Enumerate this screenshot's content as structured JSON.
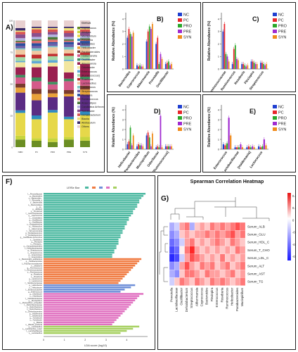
{
  "figure": {
    "label_A": "A)",
    "label_F": "F)",
    "label_G": "G)"
  },
  "panel_a": {
    "legend_title": "Genus",
    "legend": [
      {
        "name": "Coprococcus",
        "color": "#6b8e23"
      },
      {
        "name": "Alistipes",
        "color": "#c7d53e"
      },
      {
        "name": "Mucispirillum",
        "color": "#e6d84a"
      },
      {
        "name": "Prevotella",
        "color": "#2e8bc0"
      },
      {
        "name": "Bacteroides",
        "color": "#5b2c83"
      },
      {
        "name": "Helicobacter",
        "color": "#e8a23a"
      },
      {
        "name": "Parabacteroides",
        "color": "#7a3b2e"
      },
      {
        "name": "Holdemanella",
        "color": "#d45a8a"
      },
      {
        "name": "Oscillibacter",
        "color": "#3f8f5f"
      },
      {
        "name": "Akkermansia",
        "color": "#9a2050"
      },
      {
        "name": "Odoribacter",
        "color": "#f2e6a0"
      },
      {
        "name": "Enterococcus",
        "color": "#5fa9d6"
      },
      {
        "name": "[Ruminococcus]",
        "color": "#a3d9a5"
      },
      {
        "name": "Roseburia",
        "color": "#c03030"
      },
      {
        "name": "Lactobacillus",
        "color": "#f0c8a0"
      },
      {
        "name": "Lactococcus",
        "color": "#7ec8c8"
      },
      {
        "name": "Streptococcus",
        "color": "#6c5fa8"
      },
      {
        "name": "Flexispira",
        "color": "#2a4f9e"
      },
      {
        "name": "Ruminococcus",
        "color": "#e07070"
      },
      {
        "name": "Anaerostipes",
        "color": "#4a7a3a"
      },
      {
        "name": "Candidatus Arthromitus",
        "color": "#b3b3e0"
      },
      {
        "name": "Turicibacter",
        "color": "#8c4f8c"
      },
      {
        "name": "Dehalobacterium",
        "color": "#d9534f"
      },
      {
        "name": "Blautia",
        "color": "#efe27a"
      },
      {
        "name": "Allobaculum",
        "color": "#3a2a6a"
      },
      {
        "name": "Others",
        "color": "#e8d0d0"
      }
    ],
    "xticks": [
      "NMD",
      "PC",
      "PRO",
      "PRE",
      "SYN"
    ],
    "yticks": [
      "0",
      "25",
      "50",
      "75",
      "100"
    ]
  },
  "chart_data": [
    {
      "panel": "B)",
      "type": "bar",
      "ylabel": "Relative Abundance (%)",
      "categories": [
        "Bacteroides",
        "Coprococcus",
        "Akkermansia",
        "Prevotella",
        "Oscillibacter"
      ],
      "series": [
        {
          "name": "NC",
          "values": [
            2.5,
            0.3,
            2.2,
            2.0,
            0.4
          ]
        },
        {
          "name": "PC",
          "values": [
            3.2,
            0.2,
            3.0,
            2.5,
            0.5
          ]
        },
        {
          "name": "PRO",
          "values": [
            2.8,
            0.3,
            3.4,
            0.4,
            0.6
          ]
        },
        {
          "name": "PRE",
          "values": [
            2.6,
            0.2,
            3.2,
            1.2,
            0.3
          ]
        },
        {
          "name": "SYN",
          "values": [
            2.9,
            0.2,
            3.6,
            0.8,
            0.4
          ]
        }
      ]
    },
    {
      "panel": "C)",
      "type": "bar",
      "ylabel": "Relative Abundance (%)",
      "categories": [
        "Ruminococcaceae",
        "Ruminococcus",
        "Roseburia",
        "Flexispira",
        "Streptococcus"
      ],
      "series": [
        {
          "name": "NC",
          "values": [
            3.0,
            0.4,
            0.4,
            0.6,
            0.5
          ]
        },
        {
          "name": "PC",
          "values": [
            3.6,
            1.6,
            0.4,
            0.6,
            0.5
          ]
        },
        {
          "name": "PRO",
          "values": [
            1.2,
            1.9,
            0.3,
            0.5,
            0.4
          ]
        },
        {
          "name": "PRE",
          "values": [
            1.0,
            0.8,
            0.2,
            0.4,
            0.3
          ]
        },
        {
          "name": "SYN",
          "values": [
            0.6,
            0.7,
            0.3,
            0.4,
            0.4
          ]
        }
      ]
    },
    {
      "panel": "D)",
      "type": "bar",
      "ylabel": "Relative Abundance (%)",
      "categories": [
        "Helicobacter",
        "Parabacteroides",
        "Mucispirillum",
        "Odoribacter",
        "[Ruminococcus]"
      ],
      "series": [
        {
          "name": "NC",
          "values": [
            0.5,
            0.3,
            1.4,
            0.2,
            0.3
          ]
        },
        {
          "name": "PC",
          "values": [
            0.8,
            0.5,
            1.7,
            0.3,
            0.3
          ]
        },
        {
          "name": "PRO",
          "values": [
            2.2,
            0.4,
            1.2,
            0.2,
            0.3
          ]
        },
        {
          "name": "PRE",
          "values": [
            0.4,
            0.4,
            0.3,
            3.4,
            0.3
          ]
        },
        {
          "name": "SYN",
          "values": [
            1.4,
            0.3,
            1.6,
            0.2,
            0.3
          ]
        }
      ]
    },
    {
      "panel": "E)",
      "type": "bar",
      "ylabel": "Relative Abundance (%)",
      "categories": [
        "Enterococcus",
        "Lactobacillaceae",
        "[Holdemania]",
        "Lactococcus"
      ],
      "series": [
        {
          "name": "NC",
          "values": [
            0.5,
            0.2,
            0.2,
            0.3
          ]
        },
        {
          "name": "PC",
          "values": [
            0.4,
            0.2,
            0.3,
            0.2
          ]
        },
        {
          "name": "PRO",
          "values": [
            0.6,
            0.2,
            0.2,
            0.3
          ]
        },
        {
          "name": "PRE",
          "values": [
            3.2,
            0.5,
            0.3,
            1.0
          ]
        },
        {
          "name": "SYN",
          "values": [
            1.4,
            0.2,
            0.2,
            0.4
          ]
        }
      ]
    }
  ],
  "series_colors": {
    "NC": "#1f3fd0",
    "PC": "#e8262b",
    "PRO": "#2aa82a",
    "PRE": "#a02ad0",
    "SYN": "#f08a1a"
  },
  "panel_f": {
    "title": "LEfSe Bar",
    "xlabel": "LDA score (log10)",
    "xticks": [
      "0",
      "1",
      "2",
      "3",
      "4"
    ],
    "groups": [
      {
        "color": "#4ab8a0",
        "labels": [
          "f__Prevotellaceae",
          "g__Bacteroides",
          "s__Bacteroides_",
          "f__Prevotella_s",
          "c__Bacteroidia",
          "o__Bacteroidales",
          "s__sp_",
          "g__Alistipes",
          "s__uncultured",
          "f__Lachnospiraceae",
          "g__Coprococcus",
          "o__Clostridiales",
          "g__Oscillibacter",
          "s__Oscillibacter",
          "c__Erysipelotrichia",
          "g__Allobaculum",
          "s__Akkermansia",
          "f__Verrucomicrobia",
          "g__Dehalobacterium",
          "s__Dehalobacterium",
          "g__Candidatus Arthromitus",
          "s__Candidatus",
          "g__Flexispira",
          "s__Flexispira_",
          "o__Campylobacterales",
          "f__Helicobacteraceae",
          "g__Streptococcus",
          "s__Streptococcus",
          "g__Anaerostipes",
          "s__Anaerostipes"
        ],
        "values": [
          4.9,
          4.8,
          4.7,
          4.6,
          4.6,
          4.5,
          4.5,
          4.4,
          4.3,
          4.3,
          4.2,
          4.1,
          4.1,
          4.0,
          4.0,
          3.9,
          3.9,
          3.8,
          3.8,
          3.7,
          3.7,
          3.6,
          3.6,
          3.6,
          3.5,
          3.5,
          3.4,
          3.4,
          3.3,
          3.3
        ]
      },
      {
        "color": "#f07a40",
        "labels": [
          "s__Bacteroides_acidifaciens",
          "g__Parabacteroides",
          "f__Porphyromonadaceae",
          "s__distasonis",
          "g__Ruminococcus",
          "f__Ruminococcaceae",
          "s__Ruminococcus",
          "g__Roseburia",
          "s__Roseburia",
          "g__Lactococcus",
          "s__Lactococcus",
          "f__Streptococcaceae"
        ],
        "values": [
          4.7,
          4.6,
          4.5,
          4.4,
          4.3,
          4.2,
          4.1,
          4.0,
          3.9,
          3.8,
          3.7,
          3.6
        ]
      },
      {
        "color": "#6f8fd8",
        "labels": [
          "g__Helicobacter",
          "s__Helicobacter",
          "f__Enterococcaceae",
          "g__Enterococcus"
        ],
        "values": [
          4.4,
          4.2,
          3.9,
          3.7
        ]
      },
      {
        "color": "#e070c0",
        "labels": [
          "g__Odoribacter",
          "s__Odoribacter",
          "f__Odoribacteraceae",
          "g__Mucispirillum",
          "s__Mucispirillum_schaedleri",
          "f__Deferribacteraceae",
          "p__Deferribacteres",
          "c__Deferribacteres",
          "o__Deferribacterales",
          "g__Holdemania",
          "s__Holdemania",
          "g__Turicibacter",
          "s__Turicibacter",
          "g__Blautia",
          "s__Blautia_producta"
        ],
        "values": [
          4.8,
          4.6,
          4.5,
          4.4,
          4.3,
          4.2,
          4.1,
          4.0,
          3.9,
          3.8,
          3.7,
          3.6,
          3.5,
          3.4,
          3.3
        ]
      },
      {
        "color": "#a6d060",
        "labels": [
          "g__Lactobacillus",
          "s__Lactobacillus_reuteri",
          "f__Lactobacillaceae",
          "s__Lactobacillus"
        ],
        "values": [
          4.6,
          4.3,
          4.0,
          3.7
        ]
      }
    ]
  },
  "panel_g": {
    "title": "Spearman Correlation Heatmap",
    "rows": [
      "Serum_ALB",
      "Serum_GLU",
      "Serum_HDL_C",
      "Serum_T_CHO",
      "Serum_LDL_C",
      "Serum_ALT",
      "Serum_AST",
      "Serum_TG"
    ],
    "cols": [
      "Prevotella",
      "Lactobacillaceae",
      "Oscillibacter",
      "Dehalobacterium",
      "Streptococcus",
      "Akkermansia",
      "Coprococcus",
      "Bacteroides",
      "Flexispira",
      "Enterococcus",
      "Roseburia",
      "Ruminococcus",
      "Helicobacter",
      "Parabacteroides",
      "Mucispirillum"
    ],
    "legend_ticks": [
      "0.4",
      "0.2",
      "0",
      "-0.2",
      "-0.4",
      "-0.6"
    ],
    "values": [
      [
        -0.2,
        -0.1,
        0.2,
        0.3,
        -0.2,
        0.1,
        0.2,
        0.1,
        0.3,
        0.2,
        0.3,
        0.2,
        0.3,
        0.4,
        0.3
      ],
      [
        -0.3,
        -0.2,
        0.1,
        0.2,
        0.1,
        0.2,
        0.2,
        0.3,
        0.2,
        0.3,
        0.2,
        0.3,
        0.4,
        0.2,
        0.3
      ],
      [
        -0.4,
        -0.3,
        -0.1,
        0.2,
        0.3,
        0.1,
        0.2,
        0.1,
        0.2,
        0.3,
        0.2,
        0.1,
        0.3,
        0.2,
        0.1
      ],
      [
        -0.5,
        -0.4,
        0.0,
        0.3,
        0.5,
        0.2,
        0.1,
        0.2,
        0.1,
        0.2,
        0.1,
        0.2,
        0.1,
        0.3,
        0.2
      ],
      [
        -0.6,
        -0.5,
        -0.1,
        0.2,
        0.4,
        0.3,
        0.2,
        0.1,
        0.2,
        0.1,
        0.3,
        0.1,
        0.2,
        0.1,
        0.2
      ],
      [
        -0.3,
        -0.2,
        0.2,
        0.4,
        0.2,
        0.1,
        0.3,
        0.2,
        0.3,
        0.1,
        0.2,
        0.3,
        0.1,
        0.2,
        0.3
      ],
      [
        -0.2,
        -0.3,
        0.1,
        0.3,
        0.3,
        0.2,
        0.1,
        0.3,
        0.2,
        0.2,
        0.1,
        0.2,
        0.3,
        0.1,
        0.2
      ],
      [
        -0.1,
        0.1,
        0.3,
        0.2,
        0.1,
        0.3,
        0.2,
        0.1,
        0.3,
        0.2,
        0.3,
        0.2,
        0.1,
        0.2,
        0.3
      ]
    ]
  }
}
